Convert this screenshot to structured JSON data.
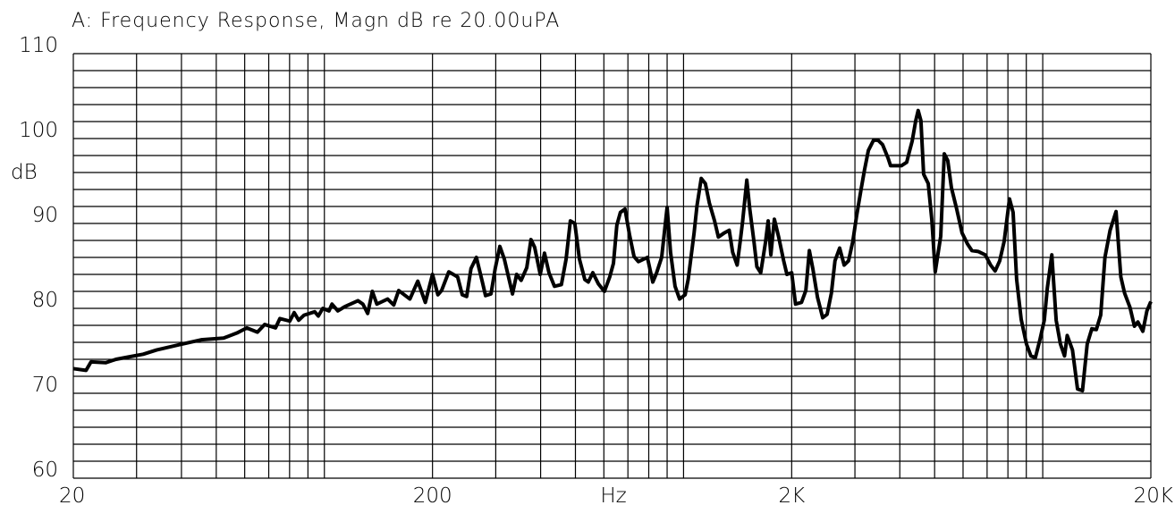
{
  "chart_data": {
    "type": "line",
    "title": "A: Frequency Response, Magn dB re 20.00uPA",
    "x_label": "Hz",
    "y_label": "dB",
    "x_scale": "log",
    "grid": true,
    "color": "#000000",
    "xlim": [
      20,
      20000
    ],
    "ylim": [
      60,
      110
    ],
    "xticks": [
      20,
      200,
      {
        "value": 2000,
        "label": "2K"
      },
      {
        "value": 20000,
        "label": "20K"
      }
    ],
    "yticks": [
      60,
      70,
      80,
      90,
      100,
      110
    ],
    "xgrid": [
      30,
      40,
      50,
      60,
      70,
      80,
      90,
      100,
      300,
      400,
      500,
      600,
      700,
      800,
      900,
      1000,
      3000,
      4000,
      5000,
      6000,
      7000,
      8000,
      9000,
      10000
    ],
    "ygrid": [
      62,
      64,
      66,
      68,
      72,
      74,
      76,
      78,
      82,
      84,
      86,
      88,
      92,
      94,
      96,
      98,
      102,
      104,
      106,
      108
    ],
    "x": [
      20,
      21.7,
      22.4,
      24.6,
      26.3,
      28.7,
      31.3,
      34.1,
      39.3,
      45.4,
      52.4,
      57.1,
      60.8,
      65.1,
      68.2,
      73.1,
      75.2,
      80.1,
      82.4,
      84.8,
      87.8,
      94.0,
      96.2,
      99.0,
      103,
      105,
      109,
      114,
      124,
      128,
      132,
      136,
      140,
      150,
      156,
      161,
      173,
      182,
      191,
      200,
      207,
      212,
      222,
      235,
      242,
      249,
      256,
      265,
      275,
      281,
      291,
      299,
      308,
      317,
      326,
      334,
      343,
      353,
      366,
      376,
      385,
      399,
      410,
      422,
      437,
      457,
      471,
      484,
      498,
      513,
      531,
      543,
      559,
      579,
      602,
      623,
      638,
      652,
      667,
      687,
      707,
      728,
      749,
      793,
      821,
      840,
      869,
      900,
      920,
      947,
      975,
      1010,
      1030,
      1070,
      1090,
      1120,
      1150,
      1180,
      1220,
      1250,
      1300,
      1340,
      1370,
      1410,
      1440,
      1460,
      1500,
      1530,
      1570,
      1600,
      1640,
      1690,
      1720,
      1750,
      1790,
      1840,
      1900,
      1940,
      2000,
      2050,
      2130,
      2190,
      2240,
      2290,
      2360,
      2440,
      2510,
      2580,
      2640,
      2720,
      2800,
      2880,
      2960,
      3030,
      3120,
      3190,
      3270,
      3380,
      3480,
      3580,
      3710,
      3770,
      4040,
      4180,
      4250,
      4330,
      4430,
      4500,
      4580,
      4660,
      4800,
      4910,
      5020,
      5200,
      5320,
      5440,
      5570,
      5760,
      5960,
      6170,
      6350,
      6610,
      6920,
      7160,
      7370,
      7590,
      7810,
      8080,
      8270,
      8460,
      8710,
      9010,
      9270,
      9540,
      9820,
      10100,
      10300,
      10600,
      10900,
      11200,
      11500,
      11700,
      12100,
      12500,
      12900,
      13300,
      13700,
      14100,
      14500,
      14900,
      15400,
      16000,
      16500,
      16900,
      17500,
      18000,
      18400,
      19000,
      19500,
      20000
    ],
    "values": [
      72.9,
      72.7,
      73.7,
      73.6,
      74.0,
      74.3,
      74.6,
      75.1,
      75.7,
      76.3,
      76.5,
      77.1,
      77.7,
      77.2,
      78.1,
      77.7,
      78.8,
      78.5,
      79.5,
      78.6,
      79.2,
      79.6,
      79.1,
      80.0,
      79.7,
      80.5,
      79.7,
      80.2,
      80.9,
      80.5,
      79.4,
      82.0,
      80.5,
      81.1,
      80.4,
      82.1,
      81.1,
      83.2,
      80.7,
      84.0,
      81.6,
      82.1,
      84.3,
      83.7,
      81.6,
      81.4,
      84.7,
      86.0,
      83.2,
      81.5,
      81.7,
      84.7,
      87.3,
      85.8,
      83.6,
      81.7,
      84.0,
      83.3,
      84.8,
      88.1,
      87.2,
      84.0,
      86.5,
      84.2,
      82.6,
      82.8,
      85.8,
      90.3,
      90.0,
      85.8,
      83.4,
      83.1,
      84.2,
      82.9,
      82.0,
      83.7,
      85.3,
      89.8,
      91.3,
      91.7,
      88.7,
      86.1,
      85.5,
      86.0,
      83.1,
      84.1,
      86.0,
      91.9,
      86.6,
      82.6,
      81.1,
      81.6,
      83.4,
      88.9,
      92.1,
      95.3,
      94.7,
      92.4,
      90.3,
      88.4,
      88.9,
      89.2,
      86.6,
      85.1,
      88.1,
      90.2,
      95.1,
      91.6,
      87.9,
      84.9,
      84.2,
      87.7,
      90.3,
      86.3,
      90.5,
      88.4,
      85.6,
      84.0,
      84.2,
      80.5,
      80.7,
      82.1,
      86.8,
      84.7,
      81.3,
      78.9,
      79.3,
      81.8,
      85.6,
      87.1,
      85.1,
      85.6,
      87.9,
      90.8,
      94.0,
      96.3,
      98.6,
      99.8,
      99.8,
      99.3,
      97.7,
      96.8,
      96.8,
      97.2,
      98.4,
      99.7,
      102.1,
      103.3,
      102.1,
      95.8,
      94.7,
      90.5,
      84.3,
      88.5,
      98.2,
      97.4,
      94.2,
      91.7,
      88.9,
      87.6,
      86.8,
      86.7,
      86.3,
      85.1,
      84.4,
      85.6,
      87.9,
      92.9,
      91.3,
      83.4,
      78.7,
      75.8,
      74.4,
      74.2,
      76.3,
      78.6,
      82.4,
      86.3,
      78.6,
      75.8,
      74.4,
      76.8,
      75.1,
      70.5,
      70.3,
      75.8,
      77.6,
      77.5,
      79.2,
      86.0,
      89.2,
      91.4,
      83.7,
      81.8,
      80.1,
      77.9,
      78.4,
      77.3,
      79.7,
      80.8
    ]
  }
}
